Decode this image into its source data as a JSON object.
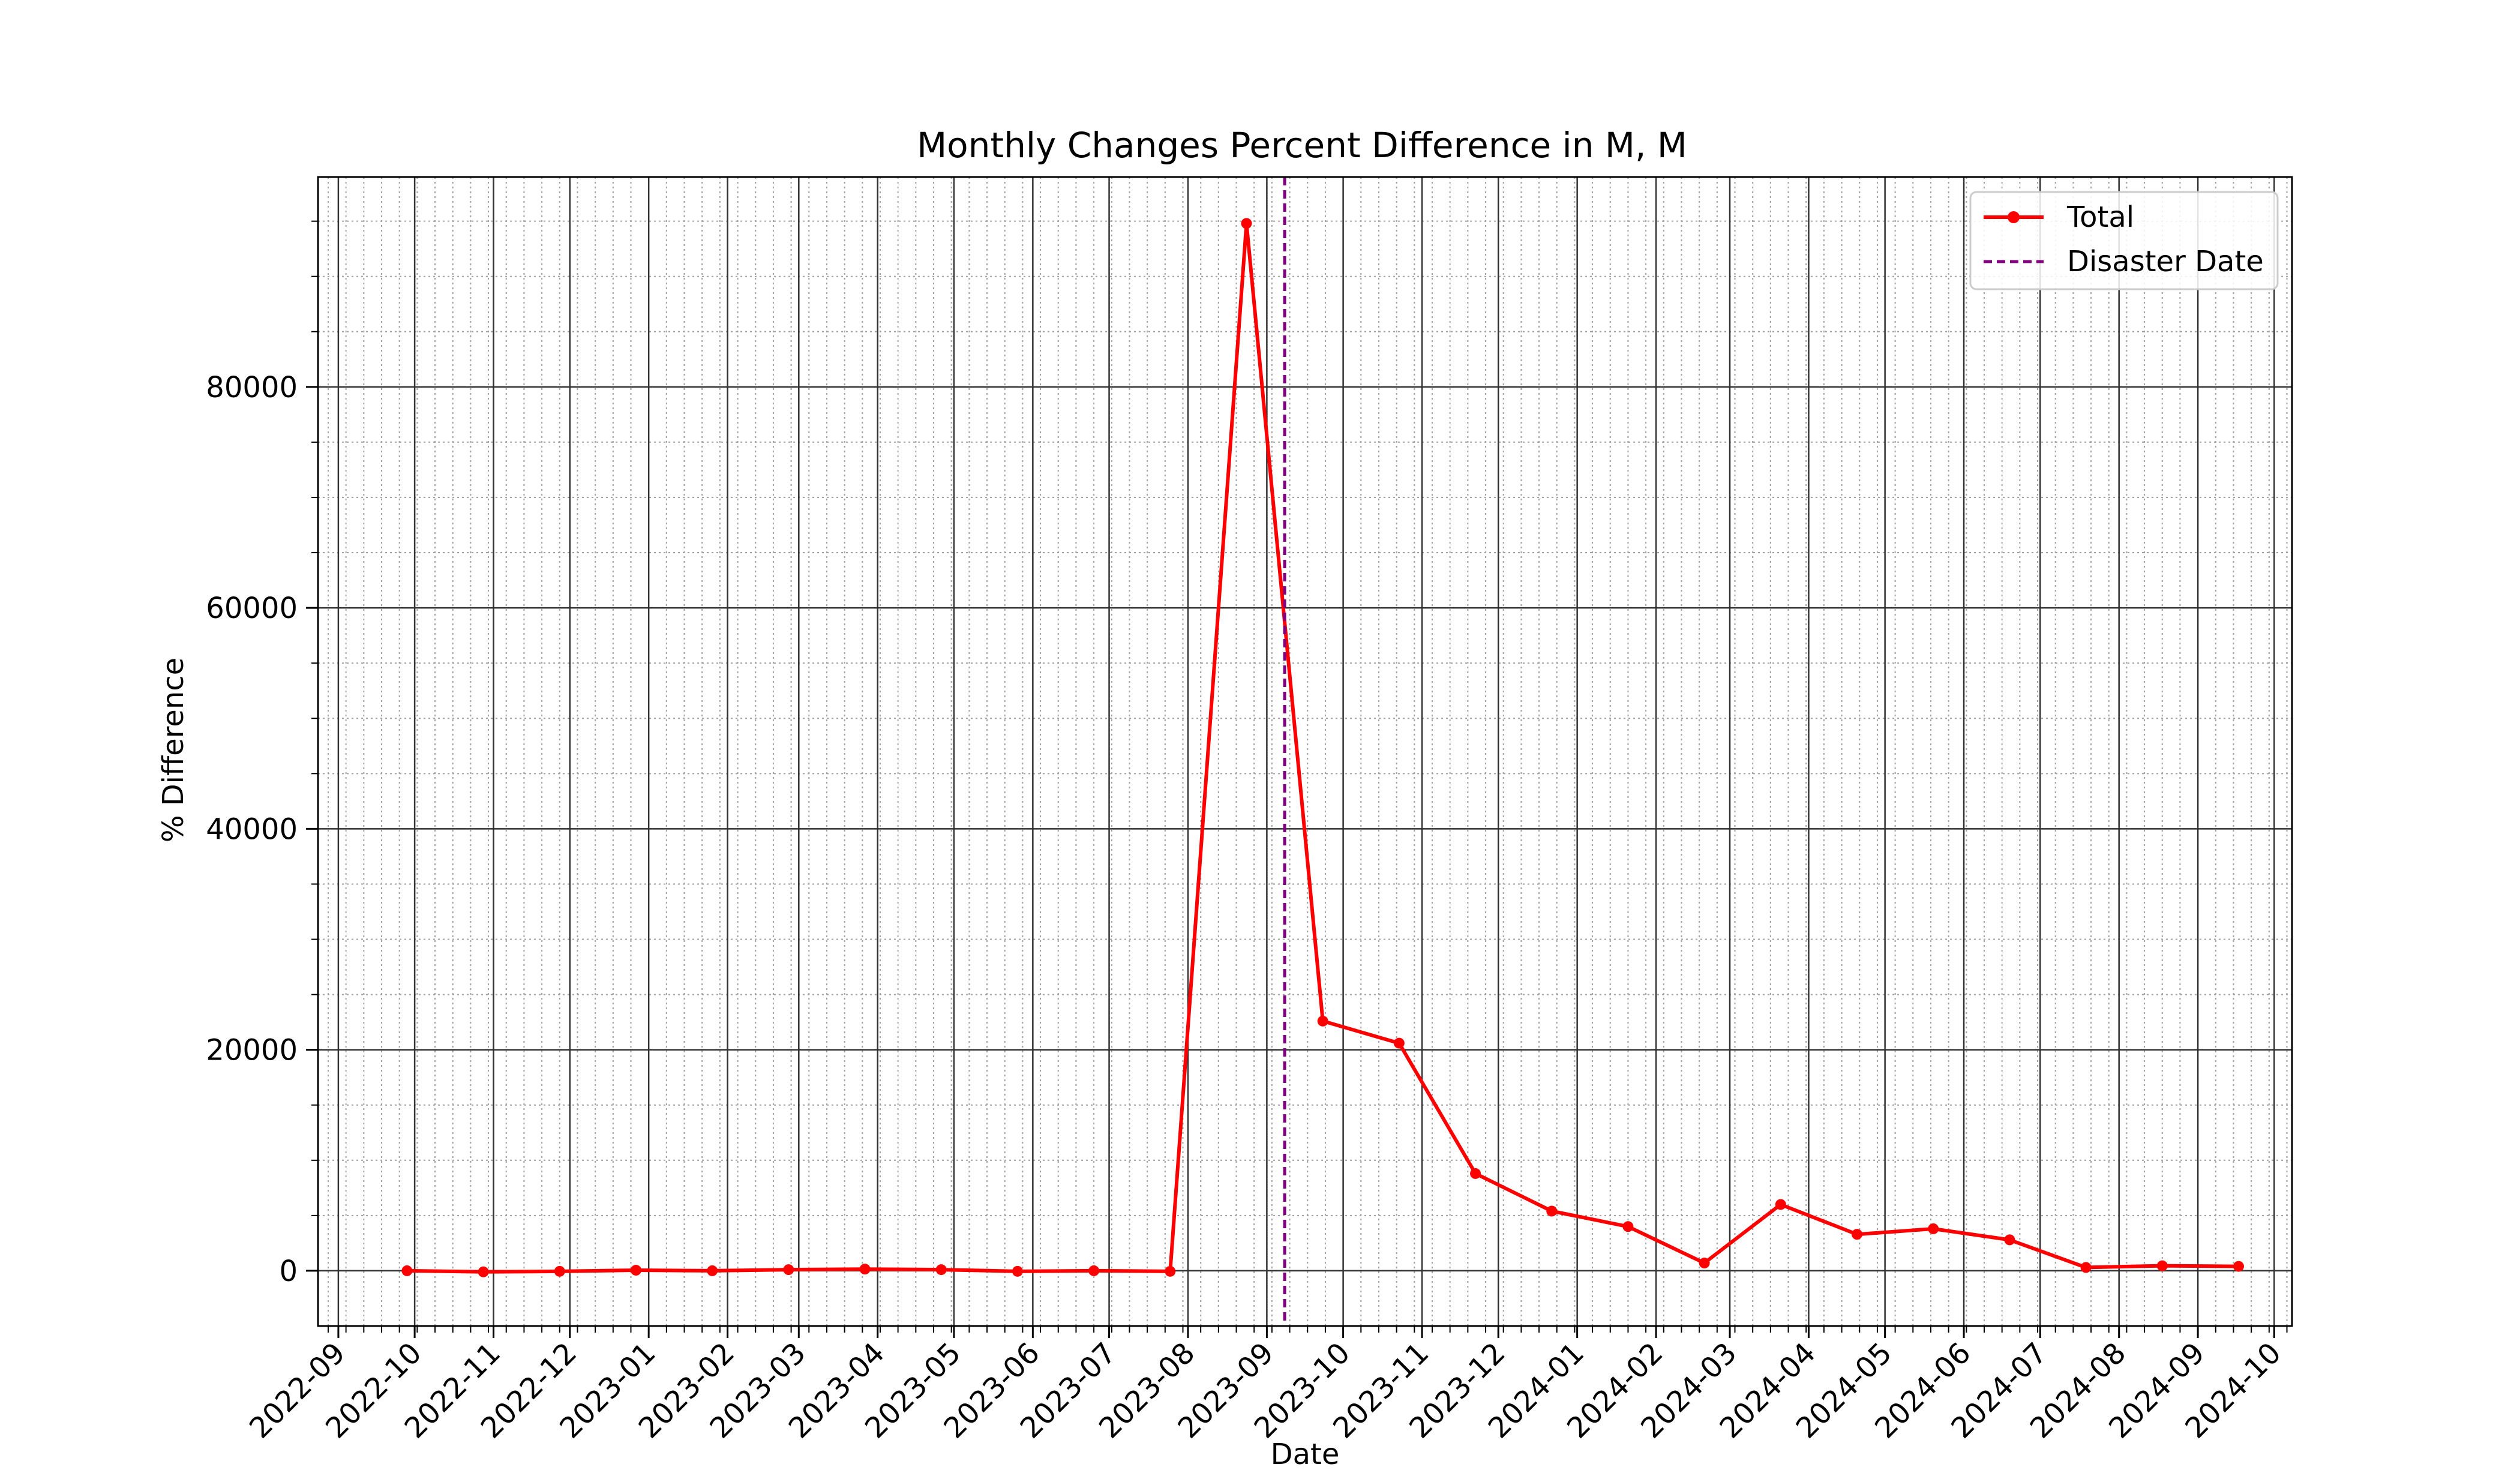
{
  "chart_data": {
    "type": "line",
    "title": "Monthly Changes Percent Difference in M, M",
    "xlabel": "Date",
    "ylabel": "% Difference",
    "x_axis_type": "date",
    "xlim": [
      "2022-08-24",
      "2024-10-08"
    ],
    "ylim": [
      -5000,
      99000
    ],
    "yticks": [
      0,
      20000,
      40000,
      60000,
      80000
    ],
    "xticks": [
      "2022-09",
      "2022-10",
      "2022-11",
      "2022-12",
      "2023-01",
      "2023-02",
      "2023-03",
      "2023-04",
      "2023-05",
      "2023-06",
      "2023-07",
      "2023-08",
      "2023-09",
      "2023-10",
      "2023-11",
      "2023-12",
      "2024-01",
      "2024-02",
      "2024-03",
      "2024-04",
      "2024-05",
      "2024-06",
      "2024-07",
      "2024-08",
      "2024-09",
      "2024-10"
    ],
    "grid": "major and minor",
    "legend_position": "upper right",
    "series": [
      {
        "name": "Total",
        "color": "#ff0000",
        "marker": "circle",
        "points": [
          {
            "x": "2022-09-28",
            "y": 0
          },
          {
            "x": "2022-10-28",
            "y": -100
          },
          {
            "x": "2022-11-27",
            "y": -50
          },
          {
            "x": "2022-12-27",
            "y": 50
          },
          {
            "x": "2023-01-26",
            "y": 0
          },
          {
            "x": "2023-02-25",
            "y": 100
          },
          {
            "x": "2023-03-27",
            "y": 150
          },
          {
            "x": "2023-04-26",
            "y": 100
          },
          {
            "x": "2023-05-26",
            "y": -50
          },
          {
            "x": "2023-06-25",
            "y": 0
          },
          {
            "x": "2023-07-25",
            "y": -50
          },
          {
            "x": "2023-08-24",
            "y": 94800
          },
          {
            "x": "2023-09-23",
            "y": 22600
          },
          {
            "x": "2023-10-23",
            "y": 20600
          },
          {
            "x": "2023-11-22",
            "y": 8800
          },
          {
            "x": "2023-12-22",
            "y": 5400
          },
          {
            "x": "2024-01-21",
            "y": 4000
          },
          {
            "x": "2024-02-20",
            "y": 700
          },
          {
            "x": "2024-03-21",
            "y": 6000
          },
          {
            "x": "2024-04-20",
            "y": 3300
          },
          {
            "x": "2024-05-20",
            "y": 3800
          },
          {
            "x": "2024-06-19",
            "y": 2800
          },
          {
            "x": "2024-07-19",
            "y": 300
          },
          {
            "x": "2024-08-18",
            "y": 450
          },
          {
            "x": "2024-09-17",
            "y": 400
          }
        ]
      }
    ],
    "reference_lines": [
      {
        "name": "Disaster Date",
        "orientation": "vertical",
        "x": "2023-09-08",
        "color": "#800080",
        "style": "dashed"
      }
    ]
  }
}
